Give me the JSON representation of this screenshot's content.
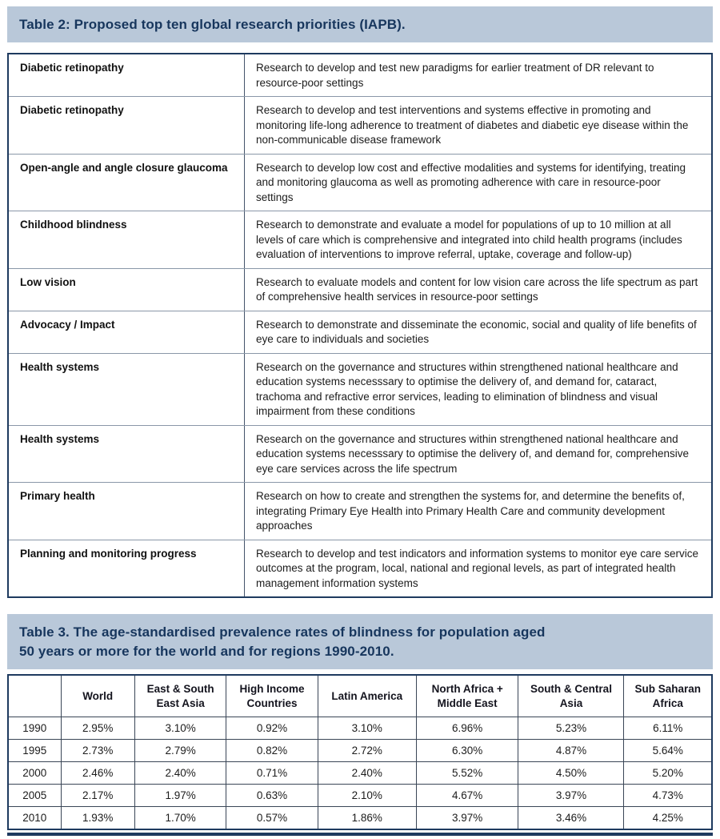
{
  "theme": {
    "band-bg": "#b9c8d9",
    "band-text": "#17365d",
    "outer-border": "#1e3a5f",
    "divider-dark": "#44546a",
    "divider-light": "#8a97a8"
  },
  "table2": {
    "title": "Table 2: Proposed top ten global research priorities (IAPB).",
    "rows": [
      {
        "priority": "Diabetic retinopathy",
        "description": "Research to develop and test new paradigms for earlier treatment of DR relevant to resource-poor settings"
      },
      {
        "priority": "Diabetic retinopathy",
        "description": "Research to develop and test interventions and systems effective in promoting and monitoring life-long adherence to treatment of diabetes and diabetic eye disease within the non-communicable disease framework"
      },
      {
        "priority": "Open-angle and angle closure glaucoma",
        "description": "Research to develop low cost and effective modalities and systems for identifying, treating and monitoring glaucoma as well as promoting adherence with care in resource-poor settings"
      },
      {
        "priority": "Childhood blindness",
        "description": "Research to demonstrate and evaluate a model for populations of up to 10 million at all levels of care which is comprehensive and integrated into child health programs (includes evaluation of interventions to improve referral, uptake, coverage and follow-up)"
      },
      {
        "priority": "Low vision",
        "description": "Research to evaluate models and content for low vision care across the life spectrum as part of comprehensive health services in resource-poor settings"
      },
      {
        "priority": "Advocacy / Impact",
        "description": "Research to demonstrate and disseminate the economic, social and quality of life benefits of eye care to individuals and societies"
      },
      {
        "priority": "Health systems",
        "description": "Research on the governance and structures within strengthened national healthcare and education systems necesssary to optimise the delivery of, and demand for, cataract, trachoma and refractive error services, leading to elimination of blindness and visual impairment from these conditions"
      },
      {
        "priority": "Health systems",
        "description": "Research on the governance and structures within strengthened national healthcare and education systems necesssary to optimise the delivery of, and demand for, comprehensive eye care services across the life spectrum"
      },
      {
        "priority": "Primary health",
        "description": "Research on how to create and strengthen the systems for, and determine the benefits of, integrating Primary Eye Health into Primary Health Care and community development approaches"
      },
      {
        "priority": "Planning and monitoring progress",
        "description": "Research to develop and test indicators and information systems to monitor eye care service outcomes at the program, local, national and regional levels, as part of integrated health management information systems"
      }
    ]
  },
  "table3": {
    "title_line1": "Table 3. The age-standardised prevalence rates of blindness for population aged",
    "title_line2": "50 years or more for the world and for regions 1990-2010.",
    "columns": [
      "",
      "World",
      "East & South East Asia",
      "High Income Countries",
      "Latin America",
      "North Africa + Middle East",
      "South & Central Asia",
      "Sub Saharan Africa"
    ],
    "rows": [
      {
        "year": "1990",
        "values": [
          "2.95%",
          "3.10%",
          "0.92%",
          "3.10%",
          "6.96%",
          "5.23%",
          "6.11%"
        ]
      },
      {
        "year": "1995",
        "values": [
          "2.73%",
          "2.79%",
          "0.82%",
          "2.72%",
          "6.30%",
          "4.87%",
          "5.64%"
        ]
      },
      {
        "year": "2000",
        "values": [
          "2.46%",
          "2.40%",
          "0.71%",
          "2.40%",
          "5.52%",
          "4.50%",
          "5.20%"
        ]
      },
      {
        "year": "2005",
        "values": [
          "2.17%",
          "1.97%",
          "0.63%",
          "2.10%",
          "4.67%",
          "3.97%",
          "4.73%"
        ]
      },
      {
        "year": "2010",
        "values": [
          "1.93%",
          "1.70%",
          "0.57%",
          "1.86%",
          "3.97%",
          "3.46%",
          "4.25%"
        ]
      }
    ]
  }
}
